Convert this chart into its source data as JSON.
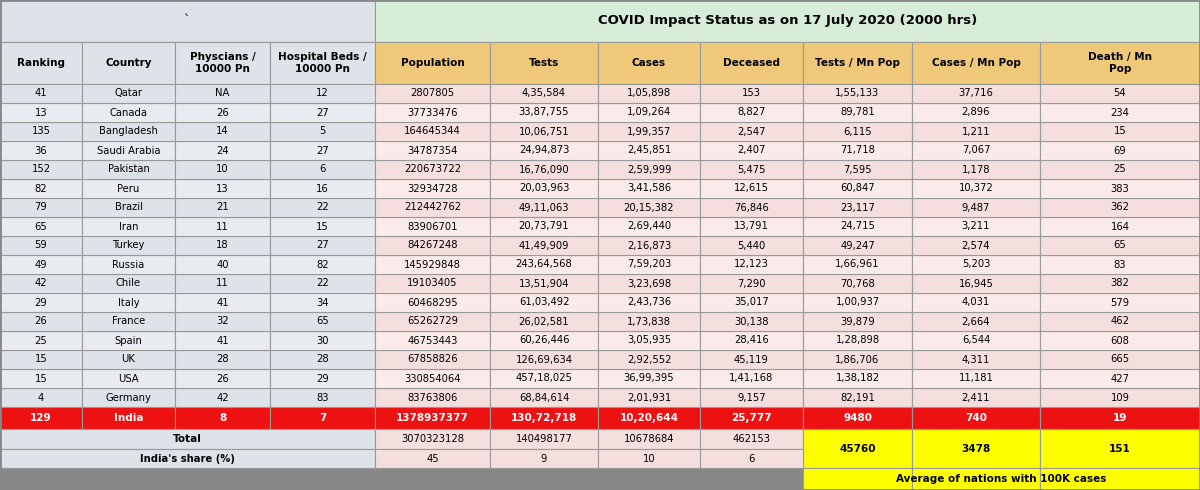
{
  "title": "COVID Impact Status as on 17 July 2020 (2000 hrs)",
  "col_headers": [
    "Ranking",
    "Country",
    "Physcians /\n10000 Pn",
    "Hospital Beds /\n10000 Pn",
    "Population",
    "Tests",
    "Cases",
    "Deceased",
    "Tests / Mn Pop",
    "Cases / Mn Pop",
    "Death / Mn\nPop"
  ],
  "rows": [
    [
      "4",
      "Germany",
      "42",
      "83",
      "83763806",
      "68,84,614",
      "2,01,931",
      "9,157",
      "82,191",
      "2,411",
      "109"
    ],
    [
      "15",
      "USA",
      "26",
      "29",
      "330854064",
      "457,18,025",
      "36,99,395",
      "1,41,168",
      "1,38,182",
      "11,181",
      "427"
    ],
    [
      "15",
      "UK",
      "28",
      "28",
      "67858826",
      "126,69,634",
      "2,92,552",
      "45,119",
      "1,86,706",
      "4,311",
      "665"
    ],
    [
      "25",
      "Spain",
      "41",
      "30",
      "46753443",
      "60,26,446",
      "3,05,935",
      "28,416",
      "1,28,898",
      "6,544",
      "608"
    ],
    [
      "26",
      "France",
      "32",
      "65",
      "65262729",
      "26,02,581",
      "1,73,838",
      "30,138",
      "39,879",
      "2,664",
      "462"
    ],
    [
      "29",
      "Italy",
      "41",
      "34",
      "60468295",
      "61,03,492",
      "2,43,736",
      "35,017",
      "1,00,937",
      "4,031",
      "579"
    ],
    [
      "42",
      "Chile",
      "11",
      "22",
      "19103405",
      "13,51,904",
      "3,23,698",
      "7,290",
      "70,768",
      "16,945",
      "382"
    ],
    [
      "49",
      "Russia",
      "40",
      "82",
      "145929848",
      "243,64,568",
      "7,59,203",
      "12,123",
      "1,66,961",
      "5,203",
      "83"
    ],
    [
      "59",
      "Turkey",
      "18",
      "27",
      "84267248",
      "41,49,909",
      "2,16,873",
      "5,440",
      "49,247",
      "2,574",
      "65"
    ],
    [
      "65",
      "Iran",
      "11",
      "15",
      "83906701",
      "20,73,791",
      "2,69,440",
      "13,791",
      "24,715",
      "3,211",
      "164"
    ],
    [
      "79",
      "Brazil",
      "21",
      "22",
      "212442762",
      "49,11,063",
      "20,15,382",
      "76,846",
      "23,117",
      "9,487",
      "362"
    ],
    [
      "82",
      "Peru",
      "13",
      "16",
      "32934728",
      "20,03,963",
      "3,41,586",
      "12,615",
      "60,847",
      "10,372",
      "383"
    ],
    [
      "152",
      "Pakistan",
      "10",
      "6",
      "220673722",
      "16,76,090",
      "2,59,999",
      "5,475",
      "7,595",
      "1,178",
      "25"
    ],
    [
      "36",
      "Saudi Arabia",
      "24",
      "27",
      "34787354",
      "24,94,873",
      "2,45,851",
      "2,407",
      "71,718",
      "7,067",
      "69"
    ],
    [
      "135",
      "Bangladesh",
      "14",
      "5",
      "164645344",
      "10,06,751",
      "1,99,357",
      "2,547",
      "6,115",
      "1,211",
      "15"
    ],
    [
      "13",
      "Canada",
      "26",
      "27",
      "37733476",
      "33,87,755",
      "1,09,264",
      "8,827",
      "89,781",
      "2,896",
      "234"
    ],
    [
      "41",
      "Qatar",
      "NA",
      "12",
      "2807805",
      "4,35,584",
      "1,05,898",
      "153",
      "1,55,133",
      "37,716",
      "54"
    ]
  ],
  "india_row": [
    "129",
    "India",
    "8",
    "7",
    "1378937377",
    "130,72,718",
    "10,20,644",
    "25,777",
    "9480",
    "740",
    "19"
  ],
  "total_row": [
    "3070323128",
    "140498177",
    "10678684",
    "462153"
  ],
  "share_row": [
    "45",
    "9",
    "10",
    "6"
  ],
  "avg_vals": [
    "45760",
    "3478",
    "151"
  ],
  "avg_label": "Average of nations with 100K cases",
  "title_bg_left": "#dde3e8",
  "title_bg_right": "#d8edd8",
  "col_hdr_bg_left": "#dde3e8",
  "col_hdr_bg_right": "#f0c87a",
  "row_bg_odd_left": "#dde3e8",
  "row_bg_odd_right": "#f5dede",
  "row_bg_even_left": "#f0f2f5",
  "row_bg_even_right": "#fbeaea",
  "india_bg": "#ee1111",
  "india_text": "#ffffff",
  "total_bg": "#dde3e8",
  "total_bg_right": "#f5dede",
  "share_bg": "#dde3e8",
  "share_bg_right": "#f5dede",
  "avg_bg": "#ffff00",
  "footer_bg": "#888888",
  "border_color": "#999999"
}
